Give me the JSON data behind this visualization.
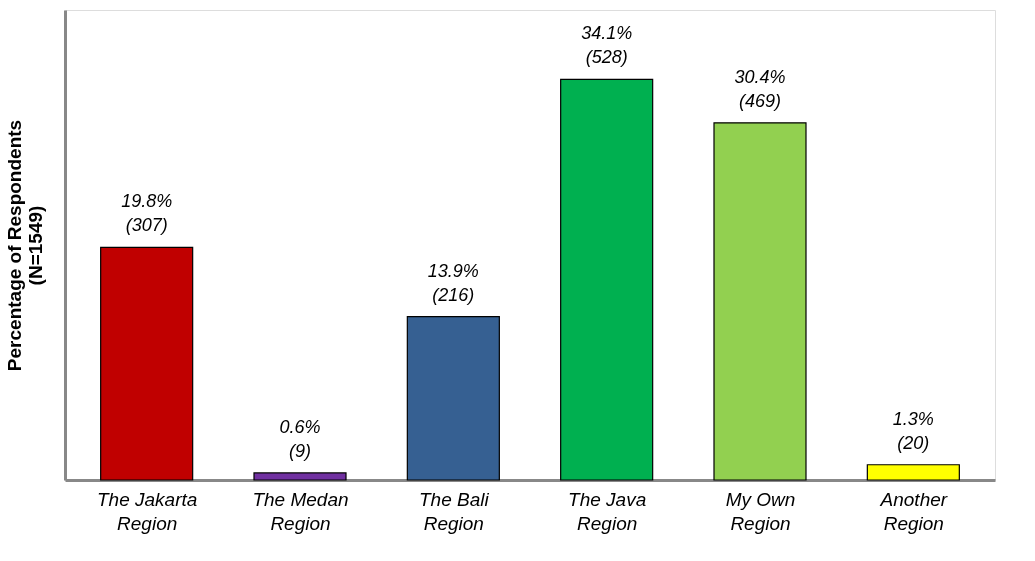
{
  "chart_data": {
    "type": "bar",
    "ylabel": "Percentage of Respondents\n(N=1549)",
    "categories": [
      "The Jakarta Region",
      "The Medan Region",
      "The Bali Region",
      "The Java Region",
      "My Own Region",
      "Another Region"
    ],
    "values": [
      19.8,
      0.6,
      13.9,
      34.1,
      30.4,
      1.3
    ],
    "colors": [
      "#c00000",
      "#7030a0",
      "#366092",
      "#00b050",
      "#92d050",
      "#ffff00"
    ],
    "value_labels": [
      "19.8%\n(307)",
      "0.6%\n(9)",
      "13.9%\n(216)",
      "34.1%\n(528)",
      "30.4%\n(469)",
      "1.3%\n(20)"
    ],
    "ylim": [
      0,
      40
    ],
    "tick_labels": "x",
    "grid": false
  }
}
